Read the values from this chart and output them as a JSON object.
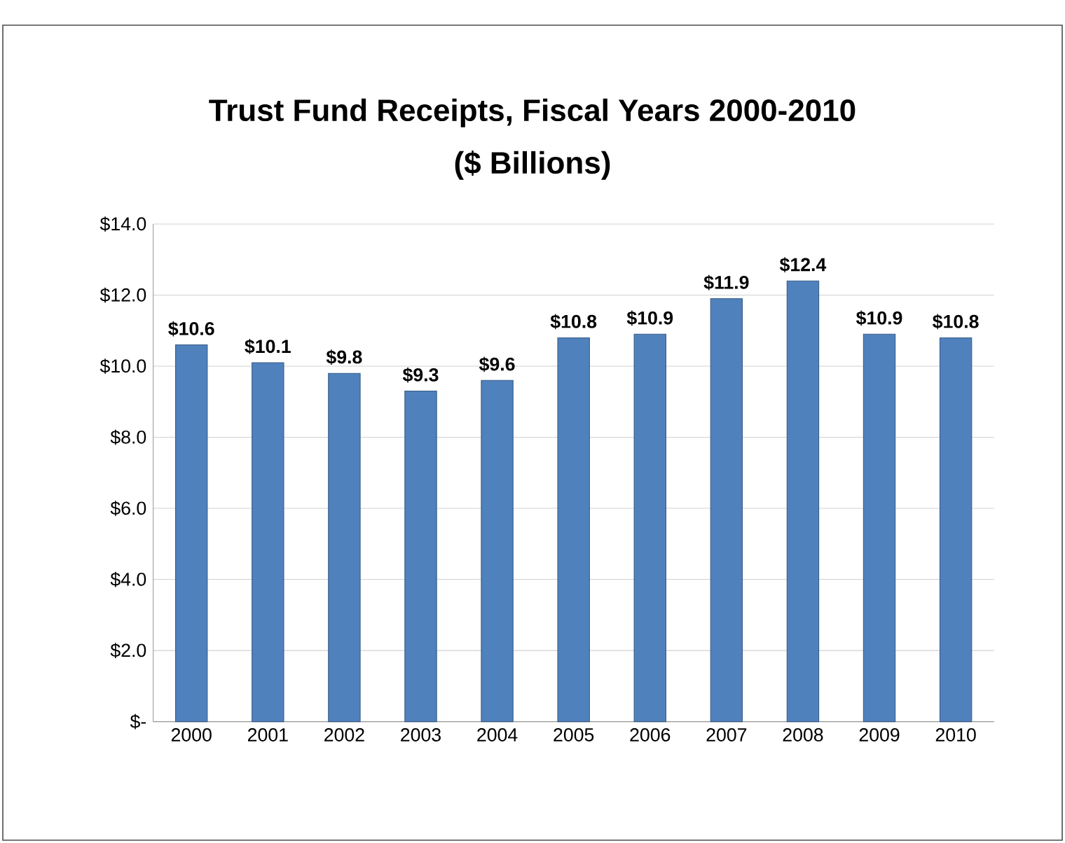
{
  "chart_data": {
    "type": "bar",
    "title": "Trust Fund Receipts, Fiscal Years 2000-2010",
    "subtitle": "($ Billions)",
    "categories": [
      "2000",
      "2001",
      "2002",
      "2003",
      "2004",
      "2005",
      "2006",
      "2007",
      "2008",
      "2009",
      "2010"
    ],
    "values": [
      10.6,
      10.1,
      9.8,
      9.3,
      9.6,
      10.8,
      10.9,
      11.9,
      12.4,
      10.9,
      10.8
    ],
    "value_labels": [
      "$10.6",
      "$10.1",
      "$9.8",
      "$9.3",
      "$9.6",
      "$10.8",
      "$10.9",
      "$11.9",
      "$12.4",
      "$10.9",
      "$10.8"
    ],
    "color": "#4f81bd",
    "ylim": [
      0,
      14
    ],
    "yticks": [
      {
        "value": 0,
        "label": "$-"
      },
      {
        "value": 2,
        "label": "$2.0"
      },
      {
        "value": 4,
        "label": "$4.0"
      },
      {
        "value": 6,
        "label": "$6.0"
      },
      {
        "value": 8,
        "label": "$8.0"
      },
      {
        "value": 10,
        "label": "$10.0"
      },
      {
        "value": 12,
        "label": "$12.0"
      },
      {
        "value": 14,
        "label": "$14.0"
      }
    ],
    "grid": "y"
  }
}
